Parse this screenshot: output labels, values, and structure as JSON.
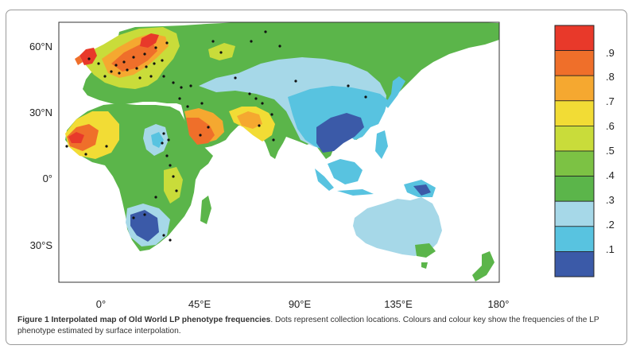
{
  "map": {
    "lat_labels": [
      "60°N",
      "30°N",
      "0°",
      "30°S"
    ],
    "lon_labels": [
      "0°",
      "45°E",
      "90°E",
      "135°E",
      "180°"
    ],
    "key": {
      "labels": [
        ".9",
        ".8",
        ".7",
        ".6",
        ".5",
        ".4",
        ".3",
        ".2",
        ".1"
      ],
      "colors": [
        "#e8392a",
        "#ef6f2a",
        "#f5a830",
        "#f2dc35",
        "#c9dc3a",
        "#7cc244",
        "#5bb54a",
        "#a6d8e8",
        "#58c3e0",
        "#3b5aa8"
      ]
    }
  },
  "caption": {
    "title": "Figure 1 Interpolated map of Old World LP phenotype frequencies",
    "text": ". Dots represent collection locations. Colours and colour key show the frequencies of the LP phenotype estimated by surface interpolation."
  }
}
